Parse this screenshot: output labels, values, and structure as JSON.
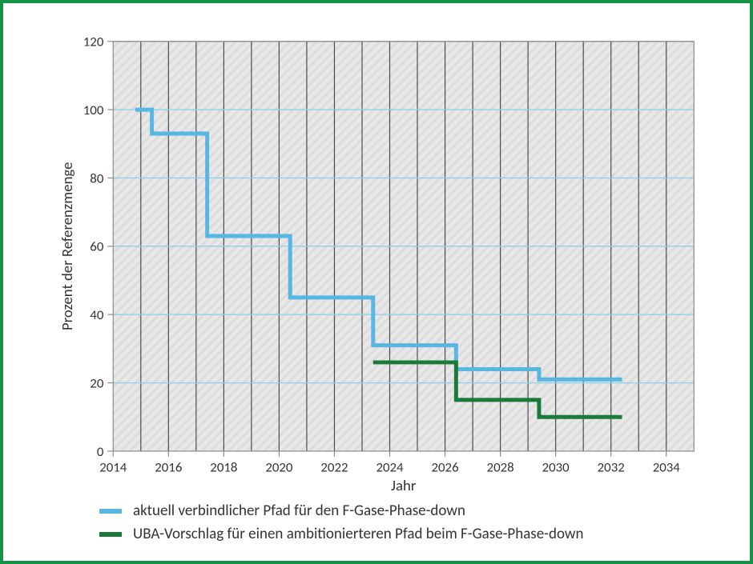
{
  "frame": {
    "border_color": "#149346",
    "border_width": 4
  },
  "chart": {
    "type": "step-line",
    "background_color": "#ffffff",
    "plot_background": {
      "base_color": "#e8e8e8",
      "hatch_color": "#dcdcdc"
    },
    "xlabel": "Jahr",
    "ylabel": "Prozent der Referenzmenge",
    "label_fontsize": 19,
    "label_color": "#333333",
    "tick_fontsize": 17,
    "tick_color": "#333333",
    "xlim": [
      2014,
      2035
    ],
    "ylim": [
      0,
      120
    ],
    "xtick_start": 2014,
    "xtick_step_label": 2,
    "xtick_step_grid": 1,
    "ytick_step": 20,
    "grid_major_color_y": "#8fd0e8",
    "grid_major_color_x": "#4a4a4a",
    "grid_major_width_y": 1.4,
    "grid_major_width_x": 1.2,
    "plot_outline_color": "#8a8a8a",
    "plot_outline_width": 1.2,
    "series": [
      {
        "id": "current",
        "label": "aktuell verbindlicher Pfad für den F-Gase-Phase-down",
        "color": "#57b6e2",
        "line_width": 5,
        "points": [
          {
            "x": 2014.8,
            "y": 100
          },
          {
            "x": 2015.4,
            "y": 100
          },
          {
            "x": 2015.4,
            "y": 93
          },
          {
            "x": 2017.4,
            "y": 93
          },
          {
            "x": 2017.4,
            "y": 63
          },
          {
            "x": 2020.4,
            "y": 63
          },
          {
            "x": 2020.4,
            "y": 45
          },
          {
            "x": 2023.4,
            "y": 45
          },
          {
            "x": 2023.4,
            "y": 31
          },
          {
            "x": 2026.4,
            "y": 31
          },
          {
            "x": 2026.4,
            "y": 24
          },
          {
            "x": 2029.4,
            "y": 24
          },
          {
            "x": 2029.4,
            "y": 21
          },
          {
            "x": 2032.4,
            "y": 21
          }
        ]
      },
      {
        "id": "uba",
        "label": "UBA-Vorschlag für einen ambitionierteren Pfad beim F-Gase-Phase-down",
        "color": "#1a7a3a",
        "line_width": 5,
        "points": [
          {
            "x": 2023.4,
            "y": 26
          },
          {
            "x": 2026.4,
            "y": 26
          },
          {
            "x": 2026.4,
            "y": 15
          },
          {
            "x": 2029.4,
            "y": 15
          },
          {
            "x": 2029.4,
            "y": 10
          },
          {
            "x": 2032.4,
            "y": 10
          }
        ]
      }
    ]
  },
  "legend": {
    "items": [
      {
        "color": "#57b6e2",
        "swatch_height": 6,
        "label": "aktuell verbindlicher Pfad für den F-Gase-Phase-down"
      },
      {
        "color": "#1a7a3a",
        "swatch_height": 6,
        "label": "UBA-Vorschlag für einen ambitionierteren Pfad beim F-Gase-Phase-down"
      }
    ]
  }
}
